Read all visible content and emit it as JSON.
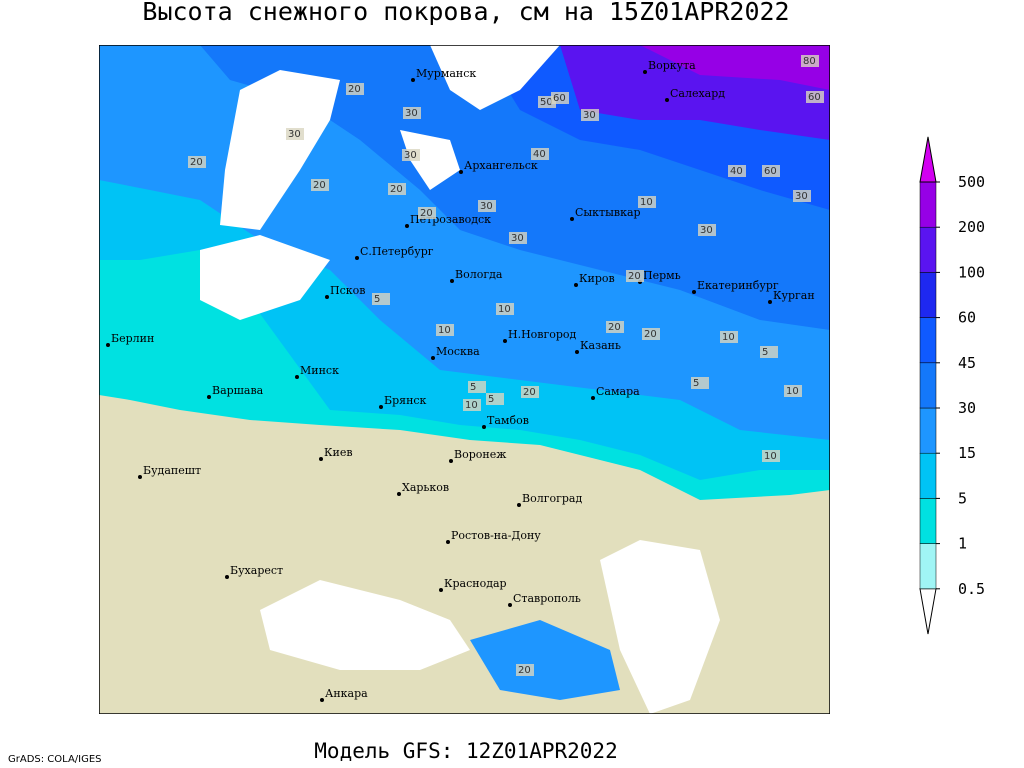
{
  "title": "Высота снежного покрова, см на 15Z01APR2022",
  "footer": "Модель GFS: 12Z01APR2022",
  "credit": "GrADS: COLA/IGES",
  "cities": [
    "Мурманск",
    "Воркута",
    "Салехард",
    "Архангельск",
    "Петрозаводск",
    "С.Петербург",
    "Сыктывкар",
    "Вологда",
    "Псков",
    "Киров",
    "Пермь",
    "Екатеринбург",
    "Курган",
    "Берлин",
    "Н.Новгород",
    "Москва",
    "Казань",
    "Минск",
    "Варшава",
    "Самара",
    "Брянск",
    "Тамбов",
    "Киев",
    "Воронеж",
    "Будапешт",
    "Харьков",
    "Волгоград",
    "Ростов-на-Дону",
    "Бухарест",
    "Краснодар",
    "Ставрополь",
    "Анкара"
  ],
  "contour_labels": [
    "80",
    "60",
    "50",
    "60",
    "30",
    "20",
    "30",
    "30",
    "20",
    "30",
    "40",
    "40",
    "60",
    "30",
    "20",
    "30",
    "20",
    "10",
    "30",
    "20",
    "30",
    "20",
    "5",
    "10",
    "10",
    "5",
    "20",
    "20",
    "10",
    "5",
    "10",
    "5",
    "20",
    "10",
    "5",
    "10",
    "20"
  ],
  "legend": {
    "levels": [
      0.5,
      1,
      5,
      15,
      30,
      45,
      60,
      100,
      200,
      500
    ],
    "colors": [
      "#ffffff",
      "#a0f5f5",
      "#00e1e1",
      "#00c3f5",
      "#1e96ff",
      "#1478fa",
      "#0f5aff",
      "#1e28f0",
      "#5a14f0",
      "#9600e6",
      "#d200f0"
    ]
  }
}
